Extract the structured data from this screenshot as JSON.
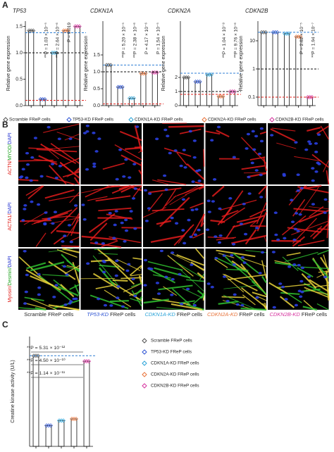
{
  "panel_labels": [
    "A",
    "B",
    "C"
  ],
  "legend": [
    {
      "name": "Scramble FReP cells",
      "color": "#555555"
    },
    {
      "name": "TP53-KD FReP cells",
      "color": "#2f55d4"
    },
    {
      "name": "CDKN1A-KD FReP cells",
      "color": "#2aa3d8"
    },
    {
      "name": "CDKN2A-KD FReP cells",
      "color": "#e8743b"
    },
    {
      "name": "CDKN2B-KD FReP cells",
      "color": "#d6329e"
    }
  ],
  "legend_c": [
    {
      "name": "Scramble FReP cells",
      "color": "#555555"
    },
    {
      "name": "TP53-KD FReP cells",
      "color": "#2f55d4"
    },
    {
      "name": "CDKN1A-KD FReP cells",
      "color": "#2aa3d8"
    },
    {
      "name": "CDKN2A-KD FReP cells",
      "color": "#e8743b"
    },
    {
      "name": "CDKN2B-KD FReP cells",
      "color": "#d6329e"
    }
  ],
  "microscopy": {
    "rows": [
      [
        {
          "text": "ACTN/",
          "color": "#e0201b"
        },
        {
          "text": "MYOD/",
          "color": "#1fa31f"
        },
        {
          "text": "DAPI",
          "color": "#2030d0"
        }
      ],
      [
        {
          "text": "ACTA1/",
          "color": "#e0201b"
        },
        {
          "text": "DAPI",
          "color": "#2030d0"
        }
      ],
      [
        {
          "text": "Myosin/",
          "color": "#e0201b"
        },
        {
          "text": "Desmin/",
          "color": "#1fa31f"
        },
        {
          "text": "DAPI",
          "color": "#2030d0"
        }
      ]
    ],
    "columns": [
      {
        "gene": "Scramble",
        "suffix": "FReP cells",
        "color": "#222222"
      },
      {
        "gene": "TP53-KD",
        "suffix": "FReP cells",
        "color": "#2f55d4"
      },
      {
        "gene": "CDKN1A-KD",
        "suffix": "FReP cells",
        "color": "#2aa3d8"
      },
      {
        "gene": "CDKN2A-KD",
        "suffix": "FReP cells",
        "color": "#e8743b"
      },
      {
        "gene": "CDKN2B-KD",
        "suffix": "FReP cells",
        "color": "#d6329e"
      }
    ]
  },
  "chart_data": [
    {
      "type": "bar",
      "title": "TP53",
      "ylabel": "Relative gene expression",
      "values": [
        1.42,
        0.12,
        1.0,
        1.42,
        1.5
      ],
      "ylim": [
        0,
        1.6
      ],
      "yticks": [
        {
          "value": 0,
          "label": "0.0"
        },
        0.5,
        {
          "value": 1,
          "label": "1.0"
        },
        1.5
      ],
      "ref_lines": [
        {
          "value": 1.38,
          "color": "#2f7fd4"
        },
        {
          "value": 1,
          "color": "#111111"
        },
        {
          "value": 0.1,
          "color": "#e0201b"
        }
      ],
      "annotations": [
        "**P = 1.03 × 10⁻⁵",
        "**P = 2.64 × 10⁻⁶",
        "P = 0.019"
      ]
    },
    {
      "type": "bar",
      "title": "CDKN1A",
      "ylabel": "Relative gene expression",
      "values": [
        1.2,
        0.55,
        0.22,
        0.95,
        0.98
      ],
      "ylim": [
        0,
        2.5
      ],
      "yticks": [
        {
          "value": 0,
          "label": "0.0"
        },
        0.5,
        {
          "value": 1,
          "label": "1.0"
        },
        1.5
      ],
      "ref_lines": [
        {
          "value": 1.2,
          "color": "#2f7fd4"
        },
        {
          "value": 1,
          "color": "#111111"
        },
        {
          "value": 0.05,
          "color": "#e0201b"
        }
      ],
      "annotations": [
        "**P = 5.20 × 10⁻⁵",
        "**P = 2.38 × 10⁻⁶",
        "P = 4.17 × 10⁻⁶",
        "P = 1.54 × 10⁻⁵"
      ]
    },
    {
      "type": "bar",
      "title": "CDKN2A",
      "ylabel": "Relative gene expression",
      "values": [
        2.0,
        1.7,
        2.2,
        0.65,
        1.0
      ],
      "ylim": [
        0,
        6
      ],
      "yticks": [
        0,
        1,
        2
      ],
      "ref_lines": [
        {
          "value": 2.3,
          "color": "#2f7fd4"
        },
        {
          "value": 1,
          "color": "#111111"
        },
        {
          "value": 0.8,
          "color": "#e0201b"
        }
      ],
      "annotations": [
        "**P = 1.04 × 10⁻⁸",
        "**P = 9.76 × 10⁻⁶"
      ]
    },
    {
      "type": "bar",
      "title": "CDKN2B",
      "ylabel": "Relative gene expression",
      "log_scale": true,
      "values": [
        20,
        20,
        18,
        14,
        0.1
      ],
      "ylim": [
        0.05,
        50
      ],
      "yticks": [
        0.1,
        1,
        10
      ],
      "ref_lines": [
        {
          "value": 20,
          "color": "#2f7fd4"
        },
        {
          "value": 1,
          "color": "#111111"
        },
        {
          "value": 0.1,
          "color": "#e0201b"
        }
      ],
      "annotations": [
        "P = 2.62 × 10⁻⁵",
        "**P = 1.94 × 10⁻⁷"
      ]
    },
    {
      "type": "bar",
      "ylabel": "Creatine kinase activity (U/L)",
      "values": [
        165,
        38,
        47,
        50,
        155
      ],
      "ylim": [
        0,
        200
      ],
      "yticks": [],
      "ref_lines": [
        {
          "value": 165,
          "color": "#2f7fd4"
        }
      ],
      "annotations": [
        "**P = 5.31 × 10⁻¹²",
        "**P = 4.50 × 10⁻¹⁰",
        "**P = 1.14 × 10⁻¹¹"
      ]
    }
  ]
}
